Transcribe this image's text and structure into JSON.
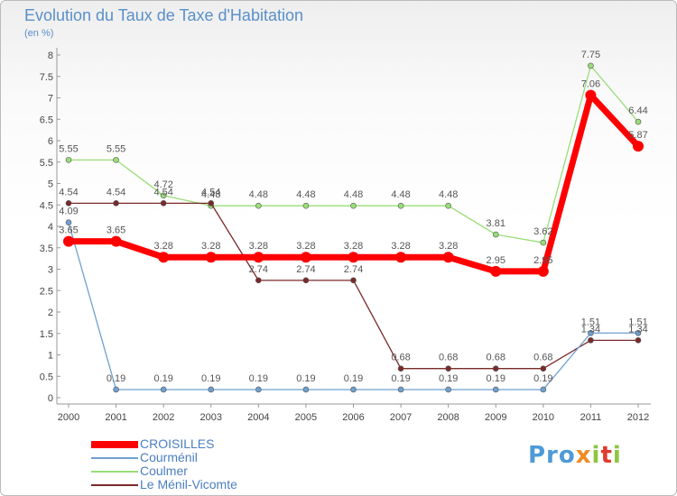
{
  "chart_data": {
    "type": "line",
    "title": "Evolution du Taux de Taxe d'Habitation",
    "ylabel": "(en %)",
    "xlabel": "",
    "x": [
      "2000",
      "2001",
      "2002",
      "2003",
      "2004",
      "2005",
      "2006",
      "2007",
      "2008",
      "2009",
      "2010",
      "2011",
      "2012"
    ],
    "ylim": [
      0,
      8
    ],
    "yticks": [
      "0",
      "0.5",
      "1",
      "1.5",
      "2",
      "2.5",
      "3",
      "3.5",
      "4",
      "4.5",
      "5",
      "5.5",
      "6",
      "6.5",
      "7",
      "7.5",
      "8"
    ],
    "grid": false,
    "legend_position": "bottom-left",
    "series": [
      {
        "name": "CROISILLES",
        "color": "#ff0000",
        "values": [
          3.65,
          3.65,
          3.28,
          3.28,
          3.28,
          3.28,
          3.28,
          3.28,
          3.28,
          2.95,
          2.95,
          7.06,
          5.87
        ],
        "labels": [
          "3.65",
          "3.65",
          "3.28",
          "3.28",
          "3.28",
          "3.28",
          "3.28",
          "3.28",
          "3.28",
          "2.95",
          "2.95",
          "7.06",
          "5.87"
        ]
      },
      {
        "name": "Courménil",
        "color": "#6fa0d0",
        "values": [
          4.09,
          0.19,
          0.19,
          0.19,
          0.19,
          0.19,
          0.19,
          0.19,
          0.19,
          0.19,
          0.19,
          1.51,
          1.51
        ],
        "labels": [
          "4.09",
          "0.19",
          "0.19",
          "0.19",
          "0.19",
          "0.19",
          "0.19",
          "0.19",
          "0.19",
          "0.19",
          "0.19",
          "1.51",
          "1.51"
        ]
      },
      {
        "name": "Coulmer",
        "color": "#99dd77",
        "values": [
          5.55,
          5.55,
          4.72,
          4.48,
          4.48,
          4.48,
          4.48,
          4.48,
          4.48,
          3.81,
          3.62,
          7.75,
          6.44
        ],
        "labels": [
          "5.55",
          "5.55",
          "4.72",
          "4.48",
          "4.48",
          "4.48",
          "4.48",
          "4.48",
          "4.48",
          "3.81",
          "3.62",
          "7.75",
          "6.44"
        ]
      },
      {
        "name": "Le Ménil-Vicomte",
        "color": "#7a2a2a",
        "values": [
          4.54,
          4.54,
          4.54,
          4.54,
          2.74,
          2.74,
          2.74,
          0.68,
          0.68,
          0.68,
          0.68,
          1.34,
          1.34
        ],
        "labels": [
          "4.54",
          "4.54",
          "4.54",
          "4.54",
          "2.74",
          "2.74",
          "2.74",
          "0.68",
          "0.68",
          "0.68",
          "0.68",
          "1.34",
          "1.34"
        ]
      }
    ]
  },
  "brand": {
    "p1": "Pro",
    "p2": "x",
    "p3": "i",
    "p4": "t",
    "p5": "i"
  }
}
